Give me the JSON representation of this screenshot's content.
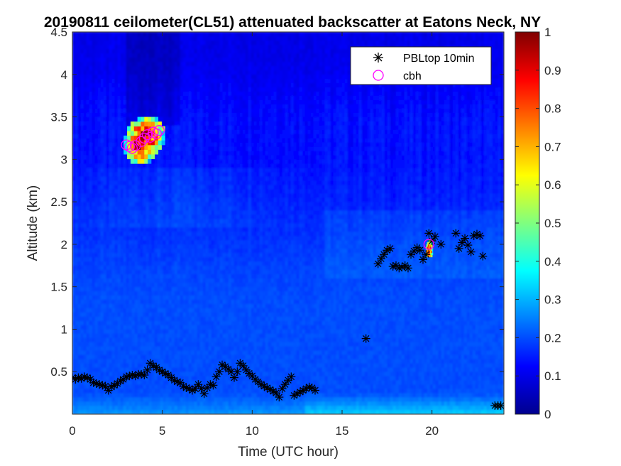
{
  "chart_data": {
    "type": "heatmap",
    "title": "20190811 ceilometer(CL51) attenuated backscatter at Eatons Neck, NY",
    "xlabel": "Time (UTC hour)",
    "ylabel": "Altitude (km)",
    "xlim": [
      0,
      24
    ],
    "ylim": [
      0,
      4.5
    ],
    "xticks": [
      0,
      5,
      10,
      15,
      20
    ],
    "xtick_labels": [
      "0",
      "5",
      "10",
      "15",
      "20"
    ],
    "yticks": [
      0.5,
      1,
      1.5,
      2,
      2.5,
      3,
      3.5,
      4,
      4.5
    ],
    "ytick_labels": [
      "0.5",
      "1",
      "1.5",
      "2",
      "2.5",
      "3",
      "3.5",
      "4",
      "4.5"
    ],
    "colorbar": {
      "range": [
        0,
        1
      ],
      "ticks": [
        0,
        0.1,
        0.2,
        0.3,
        0.4,
        0.5,
        0.6,
        0.7,
        0.8,
        0.9,
        1
      ],
      "tick_labels": [
        "0",
        "0.1",
        "0.2",
        "0.3",
        "0.4",
        "0.5",
        "0.6",
        "0.7",
        "0.8",
        "0.9",
        "1"
      ],
      "colormap": "jet"
    },
    "cloud_patches": [
      {
        "t0": 2.85,
        "t1": 5.15,
        "z0": 2.95,
        "z1": 3.5,
        "peak": 0.9
      },
      {
        "t0": 19.65,
        "t1": 20.05,
        "z0": 1.85,
        "z1": 2.1,
        "peak": 0.85
      }
    ],
    "legend": {
      "location": "top-right",
      "entries": [
        {
          "label": "PBLtop 10min",
          "marker": "asterisk",
          "color": "#000000"
        },
        {
          "label": "cbh",
          "marker": "circle",
          "color": "#ff00ff"
        }
      ]
    },
    "series": [
      {
        "name": "PBLtop 10min",
        "marker": "asterisk",
        "color": "#000000",
        "points": [
          [
            0.0,
            0.43
          ],
          [
            0.17,
            0.41
          ],
          [
            0.33,
            0.43
          ],
          [
            0.5,
            0.42
          ],
          [
            0.67,
            0.44
          ],
          [
            0.83,
            0.43
          ],
          [
            1.0,
            0.41
          ],
          [
            1.17,
            0.37
          ],
          [
            1.33,
            0.36
          ],
          [
            1.5,
            0.35
          ],
          [
            1.67,
            0.34
          ],
          [
            1.83,
            0.33
          ],
          [
            2.0,
            0.28
          ],
          [
            2.17,
            0.32
          ],
          [
            2.33,
            0.34
          ],
          [
            2.5,
            0.36
          ],
          [
            2.67,
            0.39
          ],
          [
            2.83,
            0.41
          ],
          [
            3.0,
            0.44
          ],
          [
            3.17,
            0.45
          ],
          [
            3.33,
            0.46
          ],
          [
            3.5,
            0.45
          ],
          [
            3.67,
            0.47
          ],
          [
            3.83,
            0.47
          ],
          [
            4.0,
            0.46
          ],
          [
            4.17,
            0.52
          ],
          [
            4.33,
            0.6
          ],
          [
            4.5,
            0.57
          ],
          [
            4.67,
            0.55
          ],
          [
            4.83,
            0.52
          ],
          [
            5.0,
            0.5
          ],
          [
            5.17,
            0.48
          ],
          [
            5.33,
            0.46
          ],
          [
            5.5,
            0.43
          ],
          [
            5.67,
            0.4
          ],
          [
            5.83,
            0.38
          ],
          [
            6.0,
            0.37
          ],
          [
            6.17,
            0.33
          ],
          [
            6.33,
            0.31
          ],
          [
            6.5,
            0.3
          ],
          [
            6.67,
            0.28
          ],
          [
            6.83,
            0.3
          ],
          [
            7.0,
            0.35
          ],
          [
            7.17,
            0.3
          ],
          [
            7.33,
            0.24
          ],
          [
            7.5,
            0.31
          ],
          [
            7.67,
            0.35
          ],
          [
            7.83,
            0.34
          ],
          [
            8.0,
            0.44
          ],
          [
            8.17,
            0.5
          ],
          [
            8.33,
            0.58
          ],
          [
            8.5,
            0.56
          ],
          [
            8.67,
            0.53
          ],
          [
            8.83,
            0.5
          ],
          [
            9.0,
            0.43
          ],
          [
            9.17,
            0.5
          ],
          [
            9.33,
            0.6
          ],
          [
            9.5,
            0.57
          ],
          [
            9.67,
            0.52
          ],
          [
            9.83,
            0.48
          ],
          [
            10.0,
            0.45
          ],
          [
            10.17,
            0.41
          ],
          [
            10.33,
            0.38
          ],
          [
            10.5,
            0.35
          ],
          [
            10.67,
            0.33
          ],
          [
            10.83,
            0.31
          ],
          [
            11.0,
            0.29
          ],
          [
            11.17,
            0.27
          ],
          [
            11.33,
            0.25
          ],
          [
            11.5,
            0.2
          ],
          [
            11.67,
            0.3
          ],
          [
            11.83,
            0.35
          ],
          [
            12.0,
            0.4
          ],
          [
            12.17,
            0.44
          ],
          [
            12.33,
            0.22
          ],
          [
            12.5,
            0.24
          ],
          [
            12.67,
            0.26
          ],
          [
            12.83,
            0.28
          ],
          [
            13.0,
            0.3
          ],
          [
            13.17,
            0.32
          ],
          [
            13.33,
            0.31
          ],
          [
            13.5,
            0.28
          ],
          [
            16.33,
            0.89
          ],
          [
            17.0,
            1.77
          ],
          [
            17.17,
            1.83
          ],
          [
            17.33,
            1.88
          ],
          [
            17.5,
            1.93
          ],
          [
            17.67,
            1.95
          ],
          [
            17.83,
            1.74
          ],
          [
            18.0,
            1.75
          ],
          [
            18.17,
            1.72
          ],
          [
            18.33,
            1.73
          ],
          [
            18.5,
            1.75
          ],
          [
            18.67,
            1.72
          ],
          [
            18.83,
            1.88
          ],
          [
            19.0,
            1.92
          ],
          [
            19.17,
            1.96
          ],
          [
            19.33,
            1.93
          ],
          [
            19.5,
            1.82
          ],
          [
            19.67,
            1.88
          ],
          [
            19.83,
            2.13
          ],
          [
            20.0,
            2.04
          ],
          [
            20.17,
            2.09
          ],
          [
            20.5,
            2.0
          ],
          [
            21.33,
            2.13
          ],
          [
            21.5,
            1.95
          ],
          [
            21.67,
            2.02
          ],
          [
            21.83,
            2.07
          ],
          [
            22.0,
            1.99
          ],
          [
            22.17,
            1.91
          ],
          [
            22.33,
            2.1
          ],
          [
            22.5,
            2.12
          ],
          [
            22.67,
            2.1
          ],
          [
            22.83,
            1.86
          ],
          [
            23.5,
            0.1
          ],
          [
            23.67,
            0.1
          ],
          [
            23.83,
            0.1
          ]
        ]
      },
      {
        "name": "cbh",
        "marker": "circle",
        "color": "#ff00ff",
        "points": [
          [
            3.0,
            3.17
          ],
          [
            3.17,
            3.15
          ],
          [
            3.33,
            3.13
          ],
          [
            3.5,
            3.16
          ],
          [
            3.83,
            3.21
          ],
          [
            4.0,
            3.25
          ],
          [
            4.17,
            3.29
          ],
          [
            4.33,
            3.26
          ],
          [
            4.5,
            3.32
          ],
          [
            4.67,
            3.3
          ],
          [
            4.83,
            3.34
          ],
          [
            19.83,
            2.0
          ]
        ]
      }
    ]
  }
}
